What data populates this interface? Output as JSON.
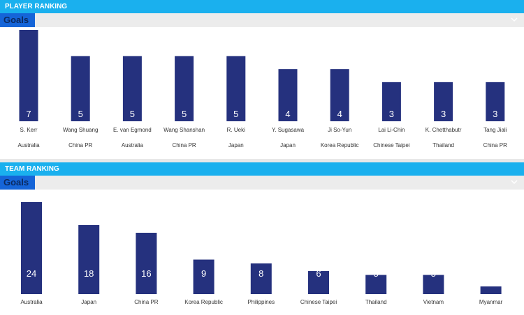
{
  "player_ranking": {
    "header": "PLAYER RANKING",
    "metric": "Goals"
  },
  "team_ranking": {
    "header": "TEAM RANKING",
    "metric": "Goals"
  },
  "colors": {
    "header": "#1ab0ee",
    "selector": "#1565d8",
    "bar": "#25317e"
  },
  "icons": {
    "dropdown": "chevron-down-icon"
  },
  "chart_data": [
    {
      "type": "bar",
      "title": "",
      "categories": [
        "S. Kerr",
        "Wang Shuang",
        "E. van Egmond",
        "Wang Shanshan",
        "R. Ueki",
        "Y. Sugasawa",
        "Ji So-Yun",
        "Lai Li-Chin",
        "K. Chetthabutr",
        "Tang Jiali"
      ],
      "teams": [
        "Australia",
        "China PR",
        "Australia",
        "China PR",
        "Japan",
        "Japan",
        "Korea Republic",
        "Chinese Taipei",
        "Thailand",
        "China PR"
      ],
      "values": [
        7,
        5,
        5,
        5,
        5,
        4,
        4,
        3,
        3,
        3
      ],
      "ylim": [
        0,
        7
      ]
    },
    {
      "type": "bar",
      "title": "",
      "categories": [
        "Australia",
        "Japan",
        "China PR",
        "Korea Republic",
        "Philippines",
        "Chinese Taipei",
        "Thailand",
        "Vietnam",
        "Myanmar"
      ],
      "values": [
        24,
        18,
        16,
        9,
        8,
        6,
        5,
        5,
        2
      ],
      "ylim": [
        0,
        24
      ]
    }
  ]
}
